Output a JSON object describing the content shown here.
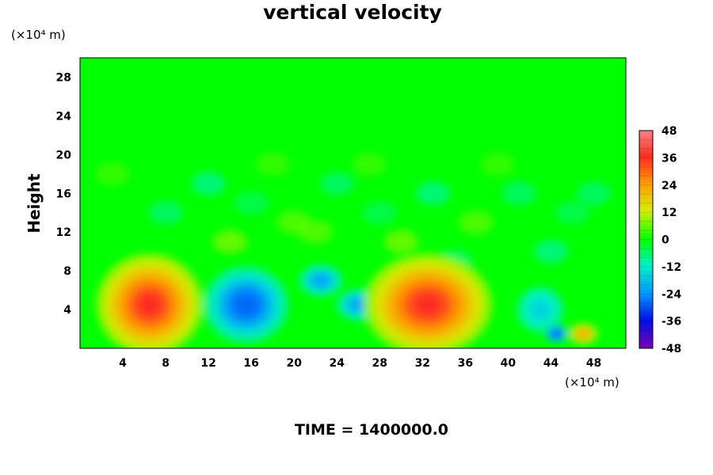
{
  "chart_data": {
    "type": "heatmap",
    "title": "vertical velocity",
    "xunit": "(×10⁴ m)",
    "yunit": "(×10⁴ m)",
    "ylabel": "Height",
    "footer": "TIME = 1400000.0",
    "xlim": [
      0,
      51
    ],
    "ylim": [
      0,
      30
    ],
    "xticks": [
      "4",
      "8",
      "12",
      "16",
      "20",
      "24",
      "28",
      "32",
      "36",
      "40",
      "44",
      "48"
    ],
    "yticks": [
      "4",
      "8",
      "12",
      "16",
      "20",
      "24",
      "28"
    ],
    "colorbar": {
      "min": -48,
      "max": 48,
      "ticks": [
        "48",
        "36",
        "24",
        "12",
        "0",
        "-12",
        "-24",
        "-36",
        "-48"
      ]
    },
    "features": [
      {
        "type": "updraft",
        "x": 6.5,
        "y": 4.5,
        "peak": 36
      },
      {
        "type": "downdraft",
        "x": 15.5,
        "y": 4.5,
        "peak": -28
      },
      {
        "type": "downdraft",
        "x": 22.5,
        "y": 7,
        "peak": -22
      },
      {
        "type": "downdraft",
        "x": 26,
        "y": 4.5,
        "peak": -22
      },
      {
        "type": "updraft",
        "x": 32.5,
        "y": 4.5,
        "peak": 36
      },
      {
        "type": "downdraft",
        "x": 43,
        "y": 4,
        "peak": -16
      },
      {
        "type": "downdraft",
        "x": 44.5,
        "y": 1.5,
        "peak": -30
      },
      {
        "type": "updraft",
        "x": 47,
        "y": 1.5,
        "peak": 22
      }
    ]
  }
}
